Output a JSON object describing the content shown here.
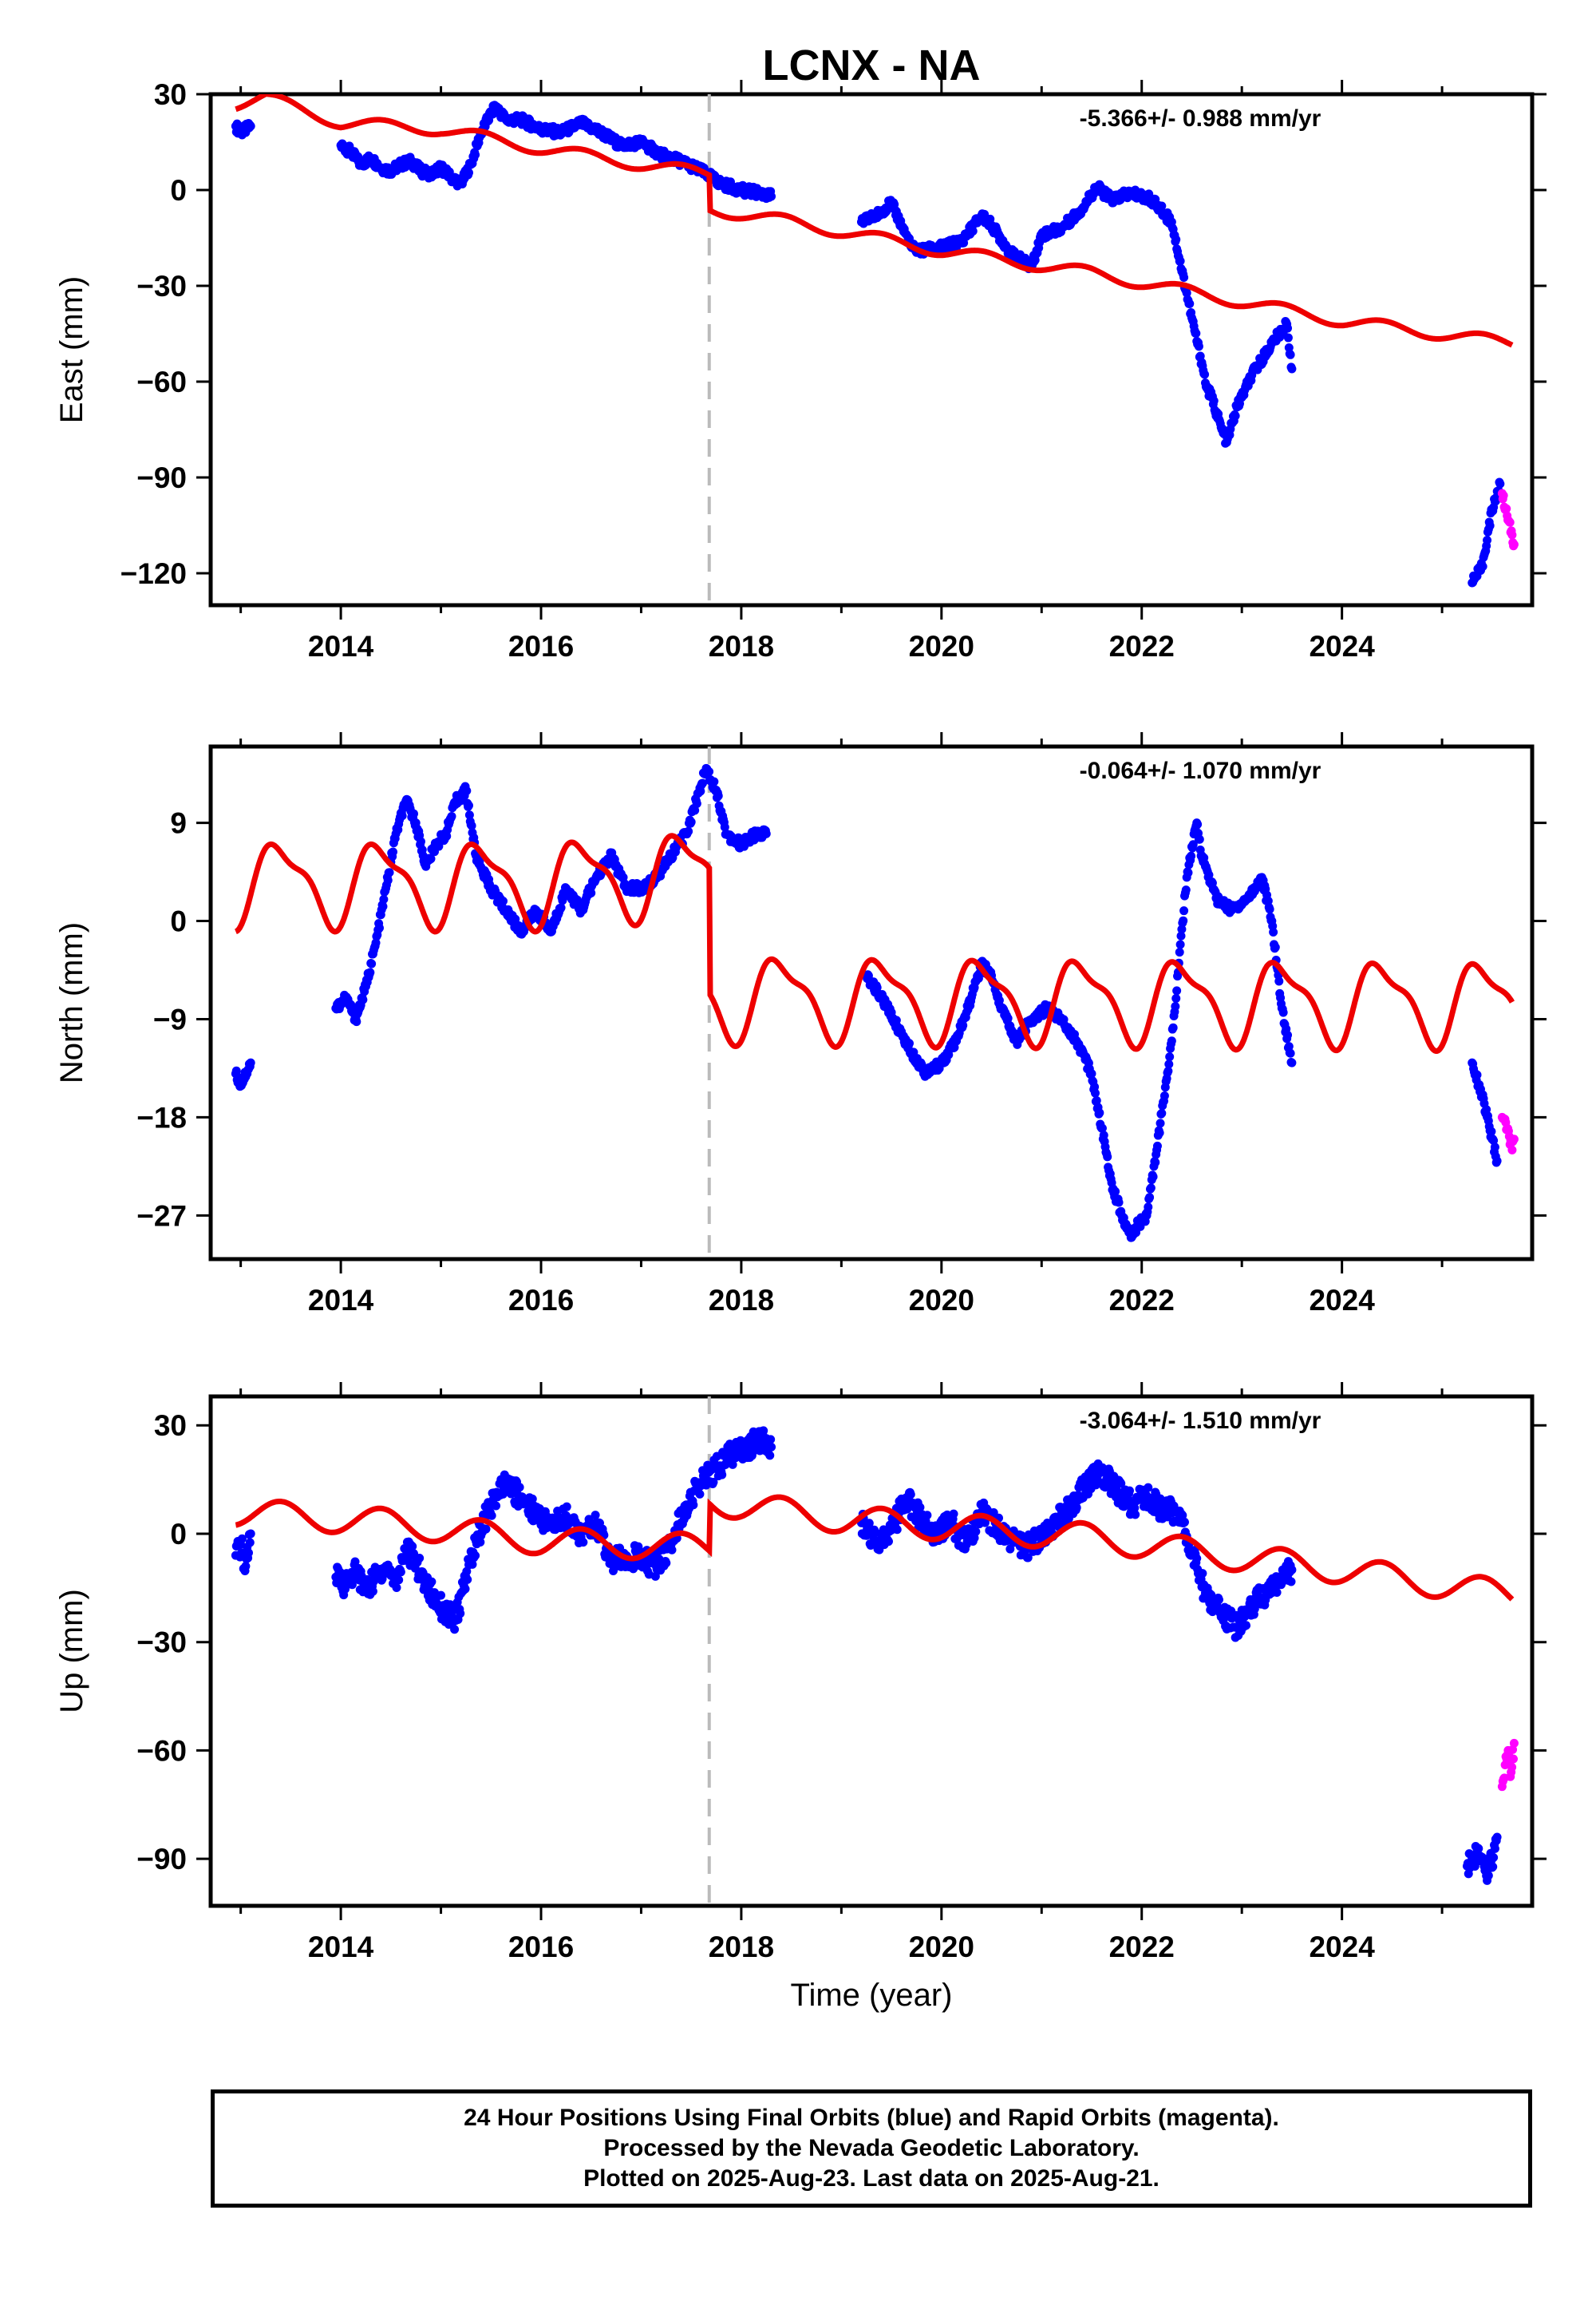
{
  "title": "LCNX - NA",
  "xlabel": "Time (year)",
  "x_ticks": [
    "2014",
    "2016",
    "2018",
    "2020",
    "2022",
    "2024"
  ],
  "footer": {
    "line1": "24 Hour Positions Using Final Orbits (blue) and Rapid Orbits (magenta).",
    "line2": "Processed by the Nevada Geodetic Laboratory.",
    "line3": "Plotted on 2025-Aug-23. Last data on 2025-Aug-21."
  },
  "colors": {
    "final": "#0000ff",
    "rapid": "#ff00ff",
    "model": "#ee0000",
    "event_line": "#bbbbbb"
  },
  "chart_data": [
    {
      "type": "scatter",
      "component": "East",
      "ylabel": "East (mm)",
      "rate": "-5.366+/- 0.988 mm/yr",
      "xlim": [
        2012.7,
        2025.9
      ],
      "ylim": [
        -130,
        30
      ],
      "y_ticks": [
        30,
        0,
        -30,
        -60,
        -90,
        -120
      ],
      "y_tick_labels": [
        "30",
        "0",
        "−30",
        "−60",
        "−90",
        "−120"
      ],
      "event_line_x": 2017.68,
      "series": [
        {
          "role": "final",
          "x": [
            2012.95,
            2013.0,
            2013.1,
            2014.0,
            2014.1,
            2014.2,
            2014.3,
            2014.4,
            2014.5,
            2014.6,
            2014.7,
            2014.8,
            2014.9,
            2015.0,
            2015.1,
            2015.2,
            2015.3,
            2015.4,
            2015.5,
            2015.55,
            2015.65,
            2015.8,
            2016.0,
            2016.2,
            2016.4,
            2016.6,
            2016.8,
            2017.0,
            2017.2,
            2017.4,
            2017.6,
            2017.8,
            2018.0,
            2018.2,
            2018.3,
            2019.2,
            2019.35,
            2019.5,
            2019.7,
            2019.8,
            2020.0,
            2020.2,
            2020.4,
            2020.5,
            2020.7,
            2020.9,
            2021.0,
            2021.2,
            2021.4,
            2021.55,
            2021.7,
            2021.9,
            2022.1,
            2022.3,
            2022.5,
            2022.6,
            2022.65,
            2022.7,
            2022.8,
            2022.85,
            2022.95,
            2023.1,
            2023.3,
            2023.45,
            2023.5,
            2025.3,
            2025.4,
            2025.5,
            2025.58
          ],
          "y": [
            20,
            18,
            20,
            14,
            12,
            8,
            10,
            7,
            6,
            8,
            9,
            6,
            5,
            7,
            4,
            2,
            8,
            18,
            24,
            26,
            22,
            22,
            19,
            18,
            21,
            18,
            14,
            15,
            11,
            9,
            6,
            2,
            0,
            -1,
            -2,
            -10,
            -8,
            -4,
            -18,
            -19,
            -18,
            -16,
            -8,
            -11,
            -20,
            -24,
            -14,
            -12,
            -6,
            1,
            -3,
            -1,
            -3,
            -10,
            -40,
            -54,
            -62,
            -65,
            -75,
            -79,
            -68,
            -58,
            -48,
            -42,
            -56,
            -123,
            -118,
            -100,
            -92
          ]
        },
        {
          "role": "rapid",
          "x": [
            2025.6,
            2025.65,
            2025.7,
            2025.72
          ],
          "y": [
            -95,
            -102,
            -108,
            -111
          ]
        }
      ]
    },
    {
      "type": "scatter",
      "component": "North",
      "ylabel": "North (mm)",
      "rate": "-0.064+/- 1.070 mm/yr",
      "xlim": [
        2012.7,
        2025.9
      ],
      "ylim": [
        -31,
        16
      ],
      "y_ticks": [
        9,
        0,
        -9,
        -18,
        -27
      ],
      "y_tick_labels": [
        "9",
        "0",
        "−9",
        "−18",
        "−27"
      ],
      "event_line_x": 2017.68,
      "series": [
        {
          "role": "final",
          "x": [
            2012.95,
            2013.0,
            2013.1,
            2013.95,
            2014.05,
            2014.15,
            2014.25,
            2014.35,
            2014.45,
            2014.55,
            2014.65,
            2014.75,
            2014.85,
            2014.95,
            2015.05,
            2015.15,
            2015.25,
            2015.35,
            2015.5,
            2015.65,
            2015.8,
            2015.95,
            2016.1,
            2016.25,
            2016.4,
            2016.55,
            2016.7,
            2016.85,
            2017.0,
            2017.15,
            2017.3,
            2017.45,
            2017.55,
            2017.65,
            2017.75,
            2017.85,
            2018.0,
            2018.15,
            2018.25,
            2019.25,
            2019.4,
            2019.7,
            2019.85,
            2020.0,
            2020.15,
            2020.3,
            2020.4,
            2020.5,
            2020.6,
            2020.75,
            2020.9,
            2021.05,
            2021.2,
            2021.35,
            2021.5,
            2021.6,
            2021.7,
            2021.8,
            2021.9,
            2021.95,
            2022.05,
            2022.15,
            2022.3,
            2022.45,
            2022.55,
            2022.6,
            2022.75,
            2022.9,
            2023.05,
            2023.2,
            2023.3,
            2023.4,
            2023.5,
            2025.3,
            2025.4,
            2025.5,
            2025.55
          ],
          "y": [
            -14,
            -15,
            -13,
            -8,
            -7,
            -9,
            -6,
            -2,
            3,
            8,
            11,
            9,
            5,
            7,
            8,
            11,
            12,
            6,
            3,
            1,
            -1,
            1,
            -1,
            3,
            1,
            4,
            6,
            3,
            3,
            4,
            6,
            8,
            11,
            14,
            12,
            8,
            7,
            8,
            8,
            -5,
            -7,
            -12,
            -14,
            -13,
            -11,
            -7,
            -4,
            -5,
            -8,
            -11,
            -9,
            -8,
            -9,
            -11,
            -14,
            -19,
            -24,
            -27,
            -29,
            -28,
            -27,
            -21,
            -11,
            4,
            9,
            6,
            2,
            1,
            2,
            4,
            0,
            -8,
            -13,
            -13,
            -16,
            -20,
            -22
          ]
        },
        {
          "role": "rapid",
          "x": [
            2025.6,
            2025.65,
            2025.7,
            2025.72
          ],
          "y": [
            -18,
            -19,
            -21,
            -20
          ]
        }
      ]
    },
    {
      "type": "scatter",
      "component": "Up",
      "ylabel": "Up (mm)",
      "rate": "-3.064+/- 1.510 mm/yr",
      "xlim": [
        2012.7,
        2025.9
      ],
      "ylim": [
        -103,
        38
      ],
      "y_ticks": [
        30,
        0,
        -30,
        -60,
        -90
      ],
      "y_tick_labels": [
        "30",
        "0",
        "−30",
        "−60",
        "−90"
      ],
      "event_line_x": 2017.68,
      "series": [
        {
          "role": "final",
          "x": [
            2012.95,
            2013.0,
            2013.05,
            2013.1,
            2013.95,
            2014.05,
            2014.15,
            2014.25,
            2014.35,
            2014.45,
            2014.55,
            2014.65,
            2014.75,
            2014.85,
            2014.95,
            2015.05,
            2015.15,
            2015.25,
            2015.35,
            2015.5,
            2015.65,
            2015.8,
            2015.95,
            2016.1,
            2016.25,
            2016.4,
            2016.55,
            2016.7,
            2016.85,
            2017.0,
            2017.15,
            2017.3,
            2017.45,
            2017.6,
            2017.75,
            2017.9,
            2018.05,
            2018.2,
            2018.3,
            2019.2,
            2019.35,
            2019.5,
            2019.65,
            2019.8,
            2019.95,
            2020.1,
            2020.25,
            2020.4,
            2020.55,
            2020.7,
            2020.85,
            2021.0,
            2021.15,
            2021.3,
            2021.45,
            2021.6,
            2021.75,
            2021.9,
            2022.05,
            2022.2,
            2022.35,
            2022.5,
            2022.65,
            2022.8,
            2022.95,
            2023.1,
            2023.25,
            2023.4,
            2023.5,
            2025.25,
            2025.35,
            2025.45,
            2025.55
          ],
          "y": [
            -6,
            -3,
            -9,
            0,
            -12,
            -14,
            -10,
            -16,
            -12,
            -9,
            -13,
            -4,
            -8,
            -14,
            -18,
            -22,
            -24,
            -12,
            -2,
            8,
            14,
            10,
            6,
            2,
            5,
            -1,
            3,
            -8,
            -6,
            -7,
            -9,
            -3,
            8,
            14,
            18,
            22,
            24,
            26,
            24,
            3,
            -2,
            1,
            10,
            4,
            0,
            3,
            -3,
            6,
            2,
            -2,
            -4,
            -1,
            3,
            8,
            14,
            17,
            12,
            8,
            10,
            7,
            6,
            -5,
            -18,
            -22,
            -26,
            -20,
            -16,
            -12,
            -10,
            -92,
            -88,
            -96,
            -84
          ]
        },
        {
          "role": "rapid",
          "x": [
            2025.6,
            2025.63,
            2025.66,
            2025.69,
            2025.72
          ],
          "y": [
            -70,
            -64,
            -60,
            -66,
            -58
          ]
        }
      ]
    }
  ]
}
